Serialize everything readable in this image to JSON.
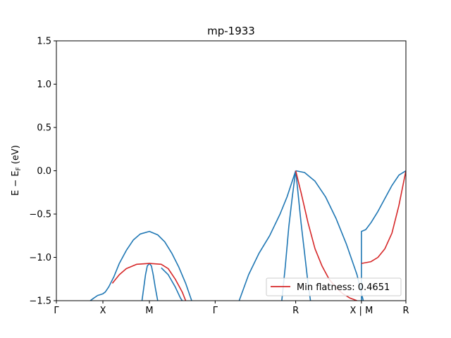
{
  "chart_data": {
    "type": "line",
    "title": "mp-1933",
    "xlabel": "",
    "ylabel": "E − E_F (eV)",
    "ylim": [
      -1.5,
      1.5
    ],
    "xlim": [
      0,
      1
    ],
    "yticks": [
      -1.5,
      -1.0,
      -0.5,
      0.0,
      0.5,
      1.0,
      1.5
    ],
    "ytick_labels": [
      "−1.5",
      "−1.0",
      "−0.5",
      "0.0",
      "0.5",
      "1.0",
      "1.5"
    ],
    "xticks": [
      0,
      0.1331,
      0.2661,
      0.4543,
      0.6847,
      0.8728,
      1.0
    ],
    "xtick_labels": [
      "Γ",
      "X",
      "M",
      "Γ",
      "R",
      "X | M",
      "R"
    ],
    "grid": false,
    "legend_position": "lower-right",
    "legend": [
      {
        "label": "Min flatness: 0.4651",
        "color": "#d62728"
      }
    ],
    "series": [
      {
        "color": "#1f77b4",
        "points": [
          [
            0.097,
            -1.5
          ],
          [
            0.107,
            -1.47
          ],
          [
            0.118,
            -1.44
          ],
          [
            0.126,
            -1.43
          ],
          [
            0.1331,
            -1.42
          ],
          [
            0.14,
            -1.4
          ],
          [
            0.15,
            -1.34
          ],
          [
            0.165,
            -1.22
          ],
          [
            0.18,
            -1.07
          ],
          [
            0.2,
            -0.92
          ],
          [
            0.22,
            -0.8
          ],
          [
            0.24,
            -0.73
          ],
          [
            0.2661,
            -0.7
          ],
          [
            0.29,
            -0.74
          ],
          [
            0.31,
            -0.82
          ],
          [
            0.33,
            -0.95
          ],
          [
            0.35,
            -1.11
          ],
          [
            0.37,
            -1.3
          ],
          [
            0.387,
            -1.5
          ]
        ]
      },
      {
        "color": "#1f77b4",
        "points": [
          [
            0.3,
            -1.12
          ],
          [
            0.32,
            -1.2
          ],
          [
            0.34,
            -1.34
          ],
          [
            0.355,
            -1.47
          ],
          [
            0.36,
            -1.5
          ]
        ]
      },
      {
        "color": "#1f77b4",
        "points": [
          [
            0.245,
            -1.5
          ],
          [
            0.25,
            -1.35
          ],
          [
            0.255,
            -1.2
          ],
          [
            0.26,
            -1.1
          ],
          [
            0.2661,
            -1.07
          ],
          [
            0.272,
            -1.1
          ],
          [
            0.277,
            -1.2
          ],
          [
            0.283,
            -1.35
          ],
          [
            0.29,
            -1.5
          ]
        ]
      },
      {
        "color": "#1f77b4",
        "points": [
          [
            0.523,
            -1.5
          ],
          [
            0.55,
            -1.2
          ],
          [
            0.58,
            -0.95
          ],
          [
            0.61,
            -0.75
          ],
          [
            0.64,
            -0.5
          ],
          [
            0.66,
            -0.3
          ],
          [
            0.6847,
            0.0
          ]
        ]
      },
      {
        "color": "#1f77b4",
        "points": [
          [
            0.6847,
            0.0
          ],
          [
            0.71,
            -0.02
          ],
          [
            0.74,
            -0.12
          ],
          [
            0.77,
            -0.3
          ],
          [
            0.8,
            -0.55
          ],
          [
            0.83,
            -0.85
          ],
          [
            0.86,
            -1.2
          ],
          [
            0.878,
            -1.5
          ]
        ]
      },
      {
        "color": "#1f77b4",
        "points": [
          [
            0.6847,
            0.0
          ],
          [
            0.69,
            -0.2
          ],
          [
            0.7,
            -0.6
          ],
          [
            0.71,
            -0.95
          ],
          [
            0.72,
            -1.3
          ],
          [
            0.727,
            -1.5
          ]
        ]
      },
      {
        "color": "#1f77b4",
        "points": [
          [
            0.645,
            -1.5
          ],
          [
            0.655,
            -1.1
          ],
          [
            0.665,
            -0.65
          ],
          [
            0.675,
            -0.3
          ],
          [
            0.6847,
            0.0
          ]
        ]
      },
      {
        "color": "#1f77b4",
        "points": [
          [
            0.8728,
            -1.5
          ],
          [
            0.8728,
            -0.7
          ],
          [
            0.885,
            -0.68
          ],
          [
            0.9,
            -0.6
          ],
          [
            0.92,
            -0.47
          ],
          [
            0.94,
            -0.32
          ],
          [
            0.96,
            -0.17
          ],
          [
            0.98,
            -0.05
          ],
          [
            1.0,
            0.0
          ]
        ]
      },
      {
        "color": "#d62728",
        "points": [
          [
            0.16,
            -1.3
          ],
          [
            0.18,
            -1.2
          ],
          [
            0.2,
            -1.13
          ],
          [
            0.23,
            -1.08
          ],
          [
            0.2661,
            -1.07
          ],
          [
            0.3,
            -1.08
          ],
          [
            0.32,
            -1.13
          ],
          [
            0.34,
            -1.25
          ],
          [
            0.36,
            -1.4
          ],
          [
            0.37,
            -1.5
          ]
        ]
      },
      {
        "color": "#d62728",
        "points": [
          [
            0.6847,
            0.0
          ],
          [
            0.7,
            -0.25
          ],
          [
            0.72,
            -0.6
          ],
          [
            0.74,
            -0.9
          ],
          [
            0.76,
            -1.1
          ],
          [
            0.78,
            -1.25
          ],
          [
            0.8,
            -1.35
          ],
          [
            0.82,
            -1.42
          ],
          [
            0.84,
            -1.47
          ],
          [
            0.86,
            -1.5
          ]
        ]
      },
      {
        "color": "#d62728",
        "points": [
          [
            0.8728,
            -1.07
          ],
          [
            0.9,
            -1.05
          ],
          [
            0.92,
            -1.0
          ],
          [
            0.94,
            -0.9
          ],
          [
            0.96,
            -0.72
          ],
          [
            0.98,
            -0.4
          ],
          [
            1.0,
            0.0
          ]
        ]
      }
    ]
  }
}
